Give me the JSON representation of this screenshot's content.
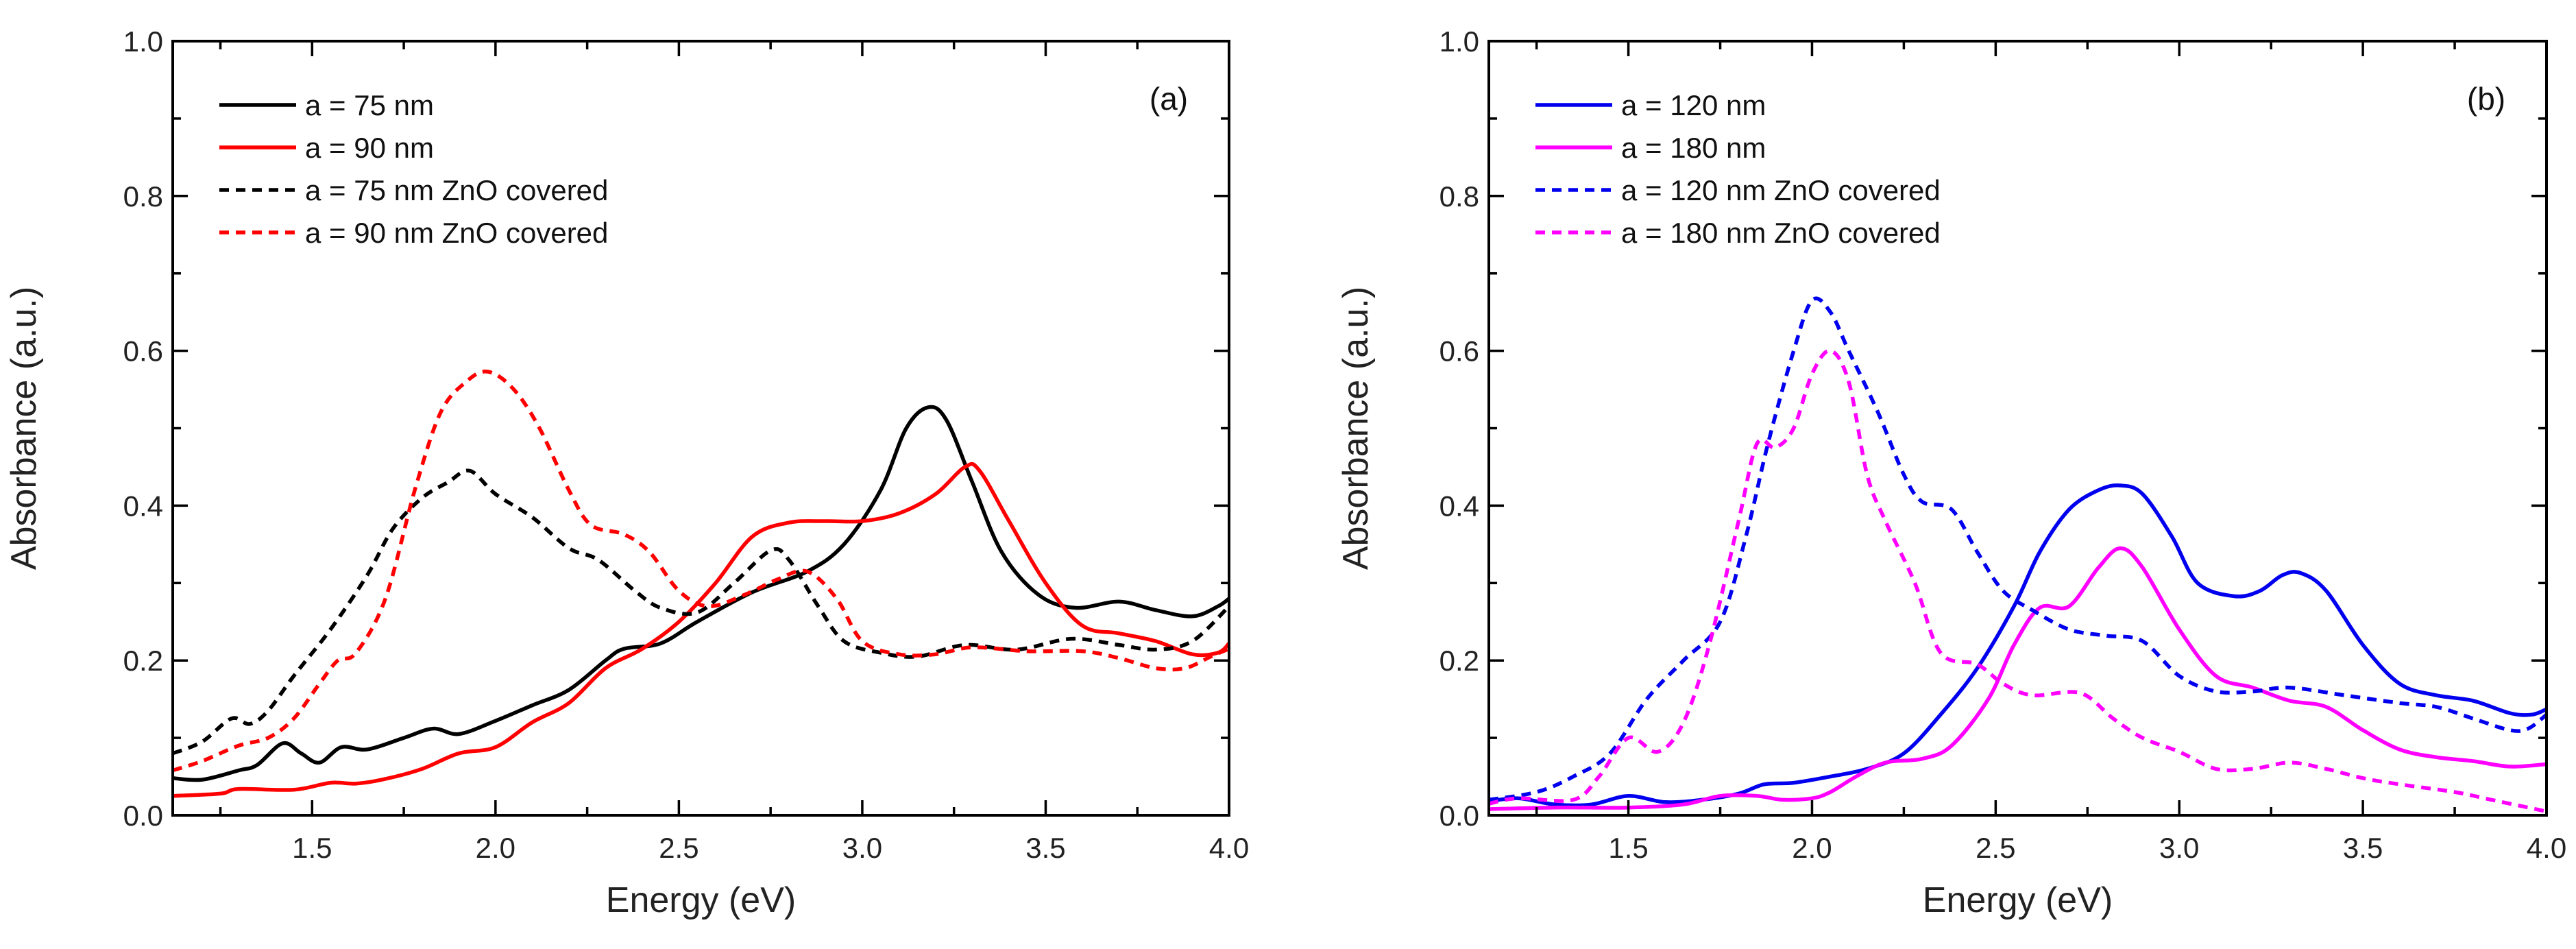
{
  "chart_data": [
    {
      "type": "line",
      "panel_label": "(a)",
      "xlabel": "Energy (eV)",
      "ylabel": "Absorbance (a.u.)",
      "xlim": [
        1.12,
        4.0
      ],
      "ylim": [
        0,
        1.0
      ],
      "xticks": [
        "1.5",
        "2.0",
        "2.5",
        "3.0",
        "3.5",
        "4.0"
      ],
      "yticks": [
        "0.0",
        "0.2",
        "0.4",
        "0.6",
        "0.8",
        "1.0"
      ],
      "legend_position": "top-left",
      "grid": false,
      "series": [
        {
          "name": "a = 75 nm",
          "color": "#000000",
          "dash": false,
          "x": [
            1.12,
            1.2,
            1.3,
            1.35,
            1.42,
            1.47,
            1.52,
            1.58,
            1.65,
            1.75,
            1.83,
            1.9,
            2.0,
            2.1,
            2.2,
            2.3,
            2.35,
            2.45,
            2.55,
            2.7,
            2.85,
            2.95,
            3.05,
            3.12,
            3.18,
            3.23,
            3.3,
            3.38,
            3.48,
            3.58,
            3.7,
            3.8,
            3.9,
            3.97,
            4.0
          ],
          "y": [
            0.048,
            0.046,
            0.058,
            0.065,
            0.093,
            0.08,
            0.068,
            0.088,
            0.085,
            0.1,
            0.112,
            0.105,
            0.122,
            0.142,
            0.162,
            0.2,
            0.215,
            0.222,
            0.25,
            0.288,
            0.315,
            0.35,
            0.42,
            0.5,
            0.527,
            0.51,
            0.43,
            0.34,
            0.285,
            0.268,
            0.276,
            0.265,
            0.257,
            0.27,
            0.28
          ]
        },
        {
          "name": "a = 90 nm",
          "color": "#ff0000",
          "dash": false,
          "x": [
            1.12,
            1.25,
            1.3,
            1.45,
            1.55,
            1.62,
            1.7,
            1.8,
            1.9,
            2.0,
            2.1,
            2.2,
            2.3,
            2.4,
            2.5,
            2.6,
            2.7,
            2.8,
            2.9,
            3.0,
            3.1,
            3.2,
            3.28,
            3.32,
            3.4,
            3.5,
            3.6,
            3.7,
            3.8,
            3.9,
            3.97,
            4.0
          ],
          "y": [
            0.025,
            0.028,
            0.034,
            0.033,
            0.042,
            0.041,
            0.047,
            0.06,
            0.08,
            0.088,
            0.12,
            0.145,
            0.19,
            0.215,
            0.25,
            0.3,
            0.36,
            0.378,
            0.38,
            0.38,
            0.39,
            0.415,
            0.45,
            0.445,
            0.38,
            0.3,
            0.245,
            0.235,
            0.225,
            0.208,
            0.21,
            0.222
          ]
        },
        {
          "name": "a = 75 nm ZnO covered",
          "color": "#000000",
          "dash": true,
          "x": [
            1.12,
            1.2,
            1.28,
            1.33,
            1.38,
            1.45,
            1.55,
            1.65,
            1.72,
            1.8,
            1.87,
            1.93,
            2.0,
            2.1,
            2.2,
            2.28,
            2.38,
            2.45,
            2.55,
            2.65,
            2.75,
            2.8,
            2.88,
            2.95,
            3.05,
            3.15,
            3.28,
            3.42,
            3.57,
            3.7,
            3.8,
            3.9,
            4.0
          ],
          "y": [
            0.08,
            0.095,
            0.125,
            0.118,
            0.135,
            0.18,
            0.24,
            0.31,
            0.37,
            0.41,
            0.43,
            0.445,
            0.415,
            0.385,
            0.345,
            0.33,
            0.29,
            0.268,
            0.262,
            0.3,
            0.342,
            0.33,
            0.27,
            0.225,
            0.21,
            0.205,
            0.22,
            0.214,
            0.228,
            0.22,
            0.214,
            0.225,
            0.27
          ]
        },
        {
          "name": "a = 90 nm ZnO covered",
          "color": "#ff0000",
          "dash": true,
          "x": [
            1.12,
            1.2,
            1.3,
            1.38,
            1.45,
            1.52,
            1.57,
            1.62,
            1.7,
            1.78,
            1.85,
            1.92,
            1.98,
            2.05,
            2.12,
            2.2,
            2.26,
            2.35,
            2.42,
            2.5,
            2.58,
            2.68,
            2.77,
            2.85,
            2.93,
            3.0,
            3.1,
            3.2,
            3.3,
            3.45,
            3.6,
            3.7,
            3.8,
            3.88,
            3.95,
            4.0
          ],
          "y": [
            0.058,
            0.07,
            0.09,
            0.1,
            0.125,
            0.17,
            0.2,
            0.21,
            0.28,
            0.42,
            0.52,
            0.56,
            0.573,
            0.55,
            0.5,
            0.42,
            0.375,
            0.363,
            0.34,
            0.29,
            0.27,
            0.285,
            0.305,
            0.315,
            0.28,
            0.225,
            0.208,
            0.208,
            0.217,
            0.212,
            0.212,
            0.203,
            0.19,
            0.19,
            0.205,
            0.215
          ]
        }
      ]
    },
    {
      "type": "line",
      "panel_label": "(b)",
      "xlabel": "Energy (eV)",
      "ylabel": "Absorbance (a.u.)",
      "xlim": [
        1.12,
        4.0
      ],
      "ylim": [
        0,
        1.0
      ],
      "xticks": [
        "1.5",
        "2.0",
        "2.5",
        "3.0",
        "3.5",
        "4.0"
      ],
      "yticks": [
        "0.0",
        "0.2",
        "0.4",
        "0.6",
        "0.8",
        "1.0"
      ],
      "legend_position": "top-left",
      "grid": false,
      "series": [
        {
          "name": "a = 120 nm",
          "color": "#0000ee",
          "dash": false,
          "x": [
            1.12,
            1.2,
            1.3,
            1.4,
            1.5,
            1.6,
            1.7,
            1.8,
            1.87,
            1.95,
            2.05,
            2.15,
            2.25,
            2.35,
            2.45,
            2.55,
            2.62,
            2.7,
            2.78,
            2.84,
            2.9,
            2.98,
            3.05,
            3.15,
            3.22,
            3.28,
            3.33,
            3.4,
            3.5,
            3.6,
            3.7,
            3.8,
            3.9,
            3.96,
            4.0
          ],
          "y": [
            0.018,
            0.022,
            0.014,
            0.014,
            0.025,
            0.017,
            0.02,
            0.028,
            0.04,
            0.042,
            0.05,
            0.06,
            0.08,
            0.13,
            0.19,
            0.27,
            0.34,
            0.395,
            0.42,
            0.426,
            0.415,
            0.36,
            0.3,
            0.283,
            0.29,
            0.31,
            0.313,
            0.29,
            0.22,
            0.17,
            0.155,
            0.148,
            0.132,
            0.13,
            0.137
          ]
        },
        {
          "name": "a = 180 nm",
          "color": "#ff00ff",
          "dash": false,
          "x": [
            1.12,
            1.3,
            1.5,
            1.65,
            1.75,
            1.85,
            1.92,
            2.0,
            2.05,
            2.12,
            2.2,
            2.3,
            2.38,
            2.48,
            2.55,
            2.62,
            2.7,
            2.78,
            2.84,
            2.9,
            3.0,
            3.1,
            3.2,
            3.3,
            3.4,
            3.5,
            3.6,
            3.7,
            3.8,
            3.9,
            4.0
          ],
          "y": [
            0.008,
            0.01,
            0.01,
            0.014,
            0.025,
            0.025,
            0.02,
            0.022,
            0.03,
            0.05,
            0.068,
            0.073,
            0.09,
            0.15,
            0.22,
            0.268,
            0.27,
            0.32,
            0.345,
            0.32,
            0.24,
            0.18,
            0.165,
            0.148,
            0.14,
            0.11,
            0.085,
            0.075,
            0.07,
            0.063,
            0.066
          ]
        },
        {
          "name": "a = 120 nm ZnO covered",
          "color": "#0000ee",
          "dash": true,
          "x": [
            1.12,
            1.25,
            1.35,
            1.45,
            1.55,
            1.65,
            1.75,
            1.82,
            1.88,
            1.95,
            2.0,
            2.05,
            2.1,
            2.18,
            2.25,
            2.3,
            2.38,
            2.45,
            2.52,
            2.6,
            2.7,
            2.8,
            2.9,
            3.0,
            3.1,
            3.2,
            3.3,
            3.45,
            3.6,
            3.7,
            3.8,
            3.9,
            3.95,
            4.0
          ],
          "y": [
            0.02,
            0.03,
            0.05,
            0.08,
            0.15,
            0.2,
            0.25,
            0.36,
            0.48,
            0.6,
            0.665,
            0.65,
            0.6,
            0.52,
            0.44,
            0.405,
            0.395,
            0.34,
            0.29,
            0.265,
            0.24,
            0.232,
            0.225,
            0.18,
            0.16,
            0.16,
            0.165,
            0.155,
            0.145,
            0.14,
            0.125,
            0.11,
            0.112,
            0.13
          ]
        },
        {
          "name": "a = 180 nm ZnO covered",
          "color": "#ff00ff",
          "dash": true,
          "x": [
            1.12,
            1.2,
            1.35,
            1.42,
            1.5,
            1.58,
            1.65,
            1.72,
            1.8,
            1.85,
            1.9,
            1.95,
            2.0,
            2.05,
            2.1,
            2.15,
            2.2,
            2.28,
            2.35,
            2.45,
            2.52,
            2.6,
            2.73,
            2.82,
            2.9,
            3.0,
            3.1,
            3.2,
            3.3,
            3.4,
            3.5,
            3.6,
            3.75,
            3.85,
            4.0
          ],
          "y": [
            0.015,
            0.022,
            0.02,
            0.05,
            0.1,
            0.082,
            0.12,
            0.22,
            0.38,
            0.48,
            0.475,
            0.5,
            0.57,
            0.6,
            0.56,
            0.44,
            0.38,
            0.3,
            0.21,
            0.195,
            0.17,
            0.155,
            0.158,
            0.125,
            0.1,
            0.082,
            0.06,
            0.06,
            0.068,
            0.06,
            0.048,
            0.04,
            0.03,
            0.02,
            0.005
          ]
        }
      ]
    }
  ]
}
